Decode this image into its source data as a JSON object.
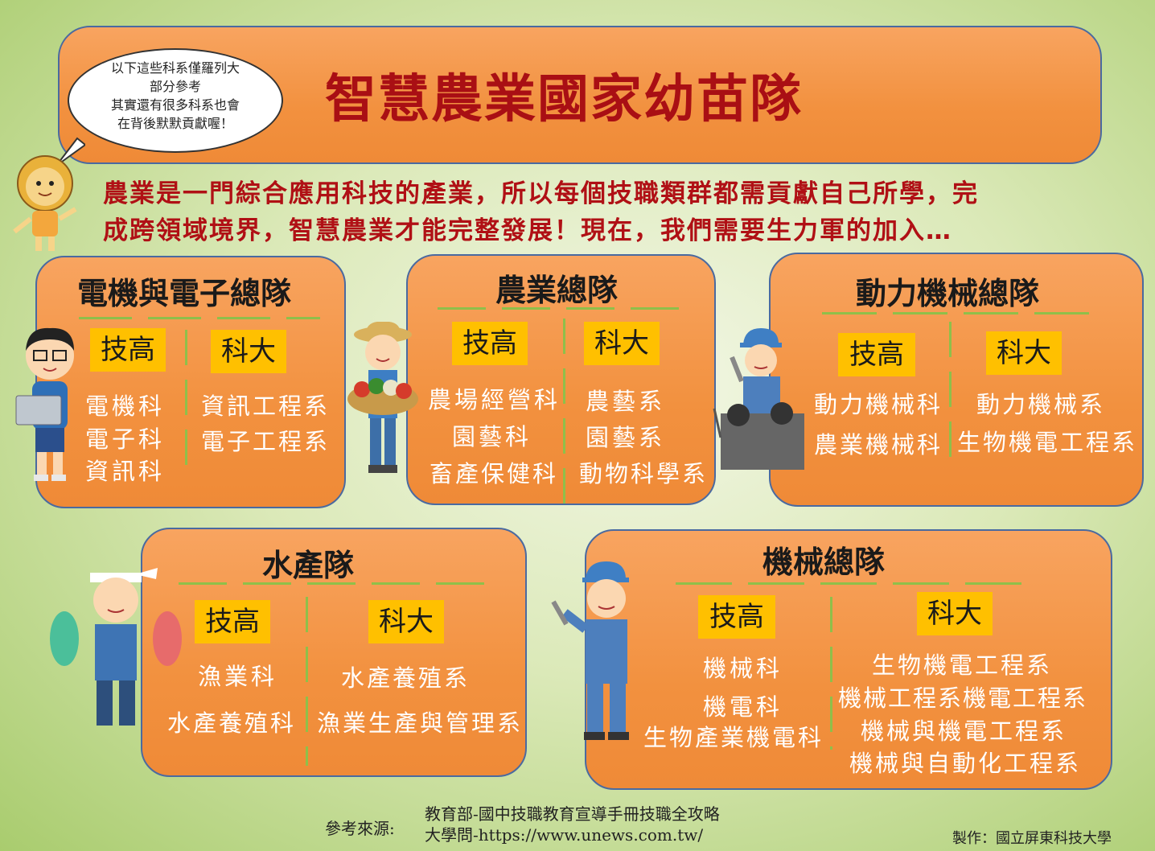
{
  "title": "智慧農業國家幼苗隊",
  "bubble": [
    "以下這些科系僅羅列大",
    "部分參考",
    "其實還有很多科系也會",
    "在背後默默貢獻喔！"
  ],
  "intro": [
    "農業是一門綜合應用科技的產業，所以每個技職類群都需貢獻自己所學，完",
    "成跨領域境界，智慧農業才能完整發展！現在，我們需要生力軍的加入…"
  ],
  "tags": {
    "high": "技高",
    "uni": "科大"
  },
  "teams": {
    "electric": {
      "title": "電機與電子總隊",
      "high": [
        "電機科",
        "電子科",
        "資訊科"
      ],
      "uni": [
        "資訊工程系",
        "電子工程系"
      ]
    },
    "agri": {
      "title": "農業總隊",
      "high": [
        "農場經營科",
        "園藝科",
        "畜產保健科"
      ],
      "uni": [
        "農藝系",
        "園藝系",
        "動物科學系"
      ]
    },
    "power": {
      "title": "動力機械總隊",
      "high": [
        "動力機械科",
        "農業機械科"
      ],
      "uni": [
        "動力機械系",
        "生物機電工程系"
      ]
    },
    "aqua": {
      "title": "水產隊",
      "high": [
        "漁業科",
        "水產養殖科"
      ],
      "uni": [
        "水產養殖系",
        "漁業生產與管理系"
      ]
    },
    "mech": {
      "title": "機械總隊",
      "high": [
        "機械科",
        "機電科",
        "生物產業機電科"
      ],
      "uni": [
        "生物機電工程系",
        "機械工程系機電工程系",
        "機械與機電工程系",
        "機械與自動化工程系"
      ]
    }
  },
  "footer": {
    "source_label": "參考來源:",
    "source_1": "教育部-國中技職教育宣導手冊技職全攻略",
    "source_2": "大學問-https://www.unews.com.tw/",
    "credit": "製作：國立屏東科技大學"
  },
  "colors": {
    "title": "#a90f14",
    "intro": "#b01015",
    "box": "#f2913f",
    "tag": "#ffc000",
    "divider": "#8fbf4a"
  },
  "icons": [
    "lion-mascot-icon",
    "programmer-icon",
    "farmer-icon",
    "mechanic-icon",
    "fisherman-icon",
    "worker-icon"
  ]
}
